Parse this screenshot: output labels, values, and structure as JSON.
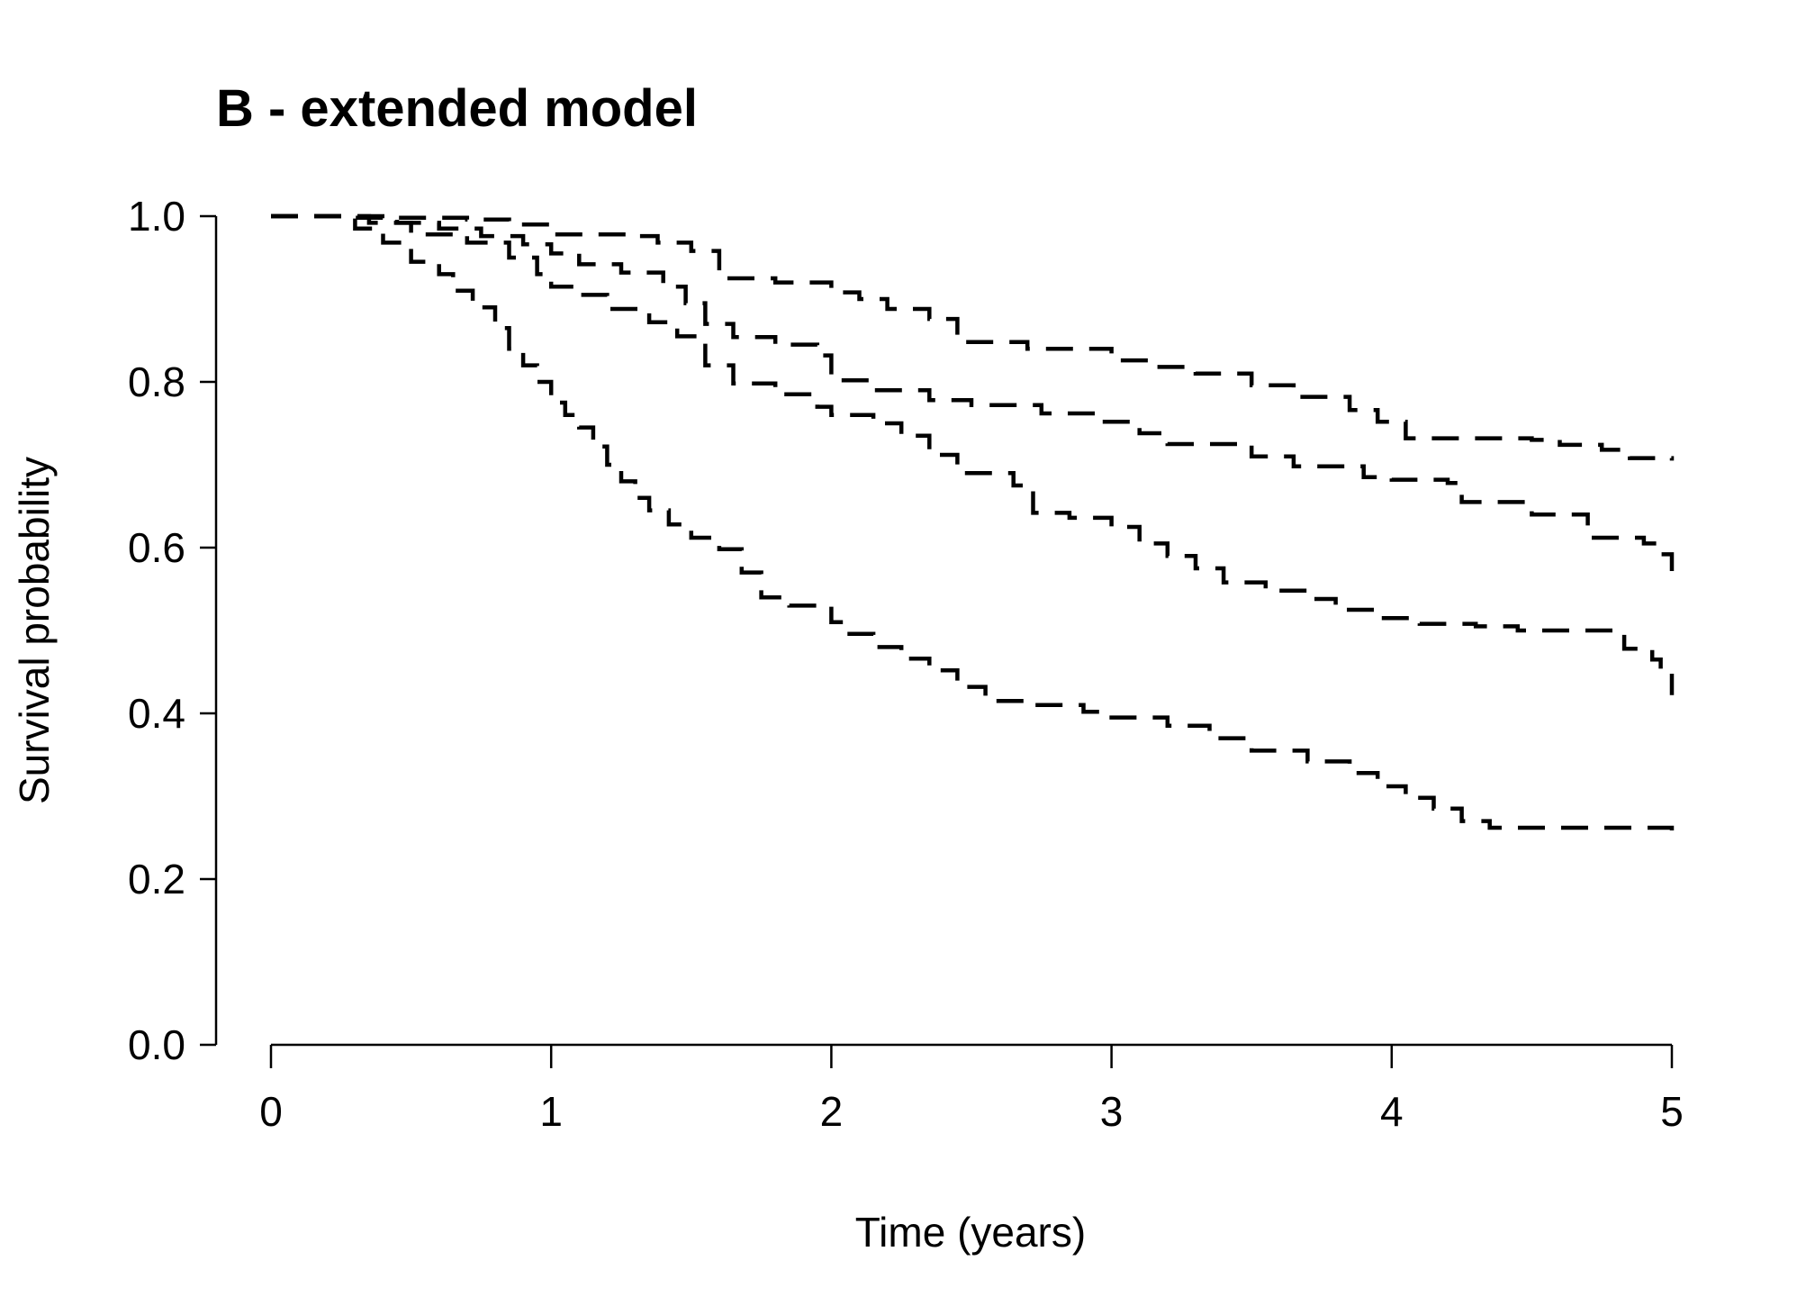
{
  "chart_data": {
    "type": "line",
    "step": true,
    "title": "B - extended model",
    "xlabel": "Time (years)",
    "ylabel": "Survival probability",
    "xlim": [
      0,
      5
    ],
    "ylim": [
      0,
      1
    ],
    "x_ticks": [
      {
        "value": 0,
        "label": "0"
      },
      {
        "value": 1,
        "label": "1"
      },
      {
        "value": 2,
        "label": "2"
      },
      {
        "value": 3,
        "label": "3"
      },
      {
        "value": 4,
        "label": "4"
      },
      {
        "value": 5,
        "label": "5"
      }
    ],
    "y_ticks": [
      {
        "value": 0.0,
        "label": "0.0"
      },
      {
        "value": 0.2,
        "label": "0.2"
      },
      {
        "value": 0.4,
        "label": "0.4"
      },
      {
        "value": 0.6,
        "label": "0.6"
      },
      {
        "value": 0.8,
        "label": "0.8"
      },
      {
        "value": 1.0,
        "label": "1.0"
      }
    ],
    "grid": false,
    "line_style": "dashed",
    "color": "#000000",
    "series": [
      {
        "name": "curve-1",
        "points": [
          [
            0,
            1.0
          ],
          [
            0.3,
            1.0
          ],
          [
            0.45,
            0.998
          ],
          [
            0.7,
            0.996
          ],
          [
            0.85,
            0.99
          ],
          [
            1.0,
            0.978
          ],
          [
            1.3,
            0.976
          ],
          [
            1.38,
            0.968
          ],
          [
            1.5,
            0.958
          ],
          [
            1.6,
            0.925
          ],
          [
            1.8,
            0.92
          ],
          [
            2.0,
            0.908
          ],
          [
            2.1,
            0.9
          ],
          [
            2.2,
            0.888
          ],
          [
            2.35,
            0.876
          ],
          [
            2.45,
            0.848
          ],
          [
            2.7,
            0.84
          ],
          [
            3.0,
            0.826
          ],
          [
            3.15,
            0.818
          ],
          [
            3.3,
            0.81
          ],
          [
            3.5,
            0.796
          ],
          [
            3.65,
            0.782
          ],
          [
            3.85,
            0.766
          ],
          [
            3.95,
            0.752
          ],
          [
            4.05,
            0.732
          ],
          [
            4.5,
            0.73
          ],
          [
            4.6,
            0.724
          ],
          [
            4.75,
            0.718
          ],
          [
            4.85,
            0.708
          ],
          [
            5.0,
            0.705
          ]
        ]
      },
      {
        "name": "curve-2",
        "points": [
          [
            0,
            1.0
          ],
          [
            0.3,
            0.998
          ],
          [
            0.45,
            0.992
          ],
          [
            0.6,
            0.985
          ],
          [
            0.75,
            0.976
          ],
          [
            0.9,
            0.966
          ],
          [
            1.0,
            0.955
          ],
          [
            1.1,
            0.942
          ],
          [
            1.25,
            0.932
          ],
          [
            1.4,
            0.915
          ],
          [
            1.48,
            0.895
          ],
          [
            1.55,
            0.87
          ],
          [
            1.65,
            0.854
          ],
          [
            1.8,
            0.845
          ],
          [
            1.95,
            0.832
          ],
          [
            2.0,
            0.802
          ],
          [
            2.15,
            0.79
          ],
          [
            2.35,
            0.778
          ],
          [
            2.5,
            0.772
          ],
          [
            2.75,
            0.762
          ],
          [
            2.95,
            0.752
          ],
          [
            3.1,
            0.738
          ],
          [
            3.2,
            0.725
          ],
          [
            3.5,
            0.71
          ],
          [
            3.65,
            0.698
          ],
          [
            3.9,
            0.685
          ],
          [
            4.0,
            0.682
          ],
          [
            4.2,
            0.678
          ],
          [
            4.25,
            0.655
          ],
          [
            4.5,
            0.64
          ],
          [
            4.7,
            0.612
          ],
          [
            4.9,
            0.605
          ],
          [
            4.95,
            0.592
          ],
          [
            5.0,
            0.565
          ]
        ]
      },
      {
        "name": "curve-3",
        "points": [
          [
            0,
            1.0
          ],
          [
            0.35,
            0.992
          ],
          [
            0.5,
            0.978
          ],
          [
            0.7,
            0.968
          ],
          [
            0.85,
            0.95
          ],
          [
            0.95,
            0.93
          ],
          [
            1.0,
            0.915
          ],
          [
            1.1,
            0.905
          ],
          [
            1.2,
            0.888
          ],
          [
            1.35,
            0.872
          ],
          [
            1.45,
            0.855
          ],
          [
            1.55,
            0.82
          ],
          [
            1.65,
            0.798
          ],
          [
            1.8,
            0.785
          ],
          [
            1.95,
            0.77
          ],
          [
            2.0,
            0.76
          ],
          [
            2.15,
            0.75
          ],
          [
            2.25,
            0.735
          ],
          [
            2.35,
            0.712
          ],
          [
            2.45,
            0.69
          ],
          [
            2.65,
            0.675
          ],
          [
            2.72,
            0.642
          ],
          [
            2.85,
            0.636
          ],
          [
            3.0,
            0.625
          ],
          [
            3.1,
            0.605
          ],
          [
            3.2,
            0.59
          ],
          [
            3.3,
            0.575
          ],
          [
            3.4,
            0.558
          ],
          [
            3.55,
            0.548
          ],
          [
            3.7,
            0.538
          ],
          [
            3.8,
            0.525
          ],
          [
            3.95,
            0.515
          ],
          [
            4.1,
            0.508
          ],
          [
            4.3,
            0.505
          ],
          [
            4.45,
            0.5
          ],
          [
            4.8,
            0.495
          ],
          [
            4.83,
            0.478
          ],
          [
            4.93,
            0.465
          ],
          [
            4.96,
            0.45
          ],
          [
            5.0,
            0.422
          ]
        ]
      },
      {
        "name": "curve-4",
        "points": [
          [
            0,
            1.0
          ],
          [
            0.3,
            0.985
          ],
          [
            0.4,
            0.968
          ],
          [
            0.5,
            0.945
          ],
          [
            0.6,
            0.93
          ],
          [
            0.65,
            0.91
          ],
          [
            0.72,
            0.89
          ],
          [
            0.8,
            0.865
          ],
          [
            0.85,
            0.84
          ],
          [
            0.9,
            0.82
          ],
          [
            0.95,
            0.8
          ],
          [
            1.0,
            0.775
          ],
          [
            1.05,
            0.76
          ],
          [
            1.1,
            0.745
          ],
          [
            1.15,
            0.722
          ],
          [
            1.2,
            0.7
          ],
          [
            1.25,
            0.68
          ],
          [
            1.3,
            0.66
          ],
          [
            1.35,
            0.645
          ],
          [
            1.42,
            0.628
          ],
          [
            1.5,
            0.612
          ],
          [
            1.6,
            0.598
          ],
          [
            1.68,
            0.57
          ],
          [
            1.75,
            0.54
          ],
          [
            1.85,
            0.53
          ],
          [
            2.0,
            0.51
          ],
          [
            2.05,
            0.496
          ],
          [
            2.15,
            0.48
          ],
          [
            2.25,
            0.466
          ],
          [
            2.35,
            0.452
          ],
          [
            2.45,
            0.432
          ],
          [
            2.55,
            0.415
          ],
          [
            2.7,
            0.41
          ],
          [
            2.9,
            0.402
          ],
          [
            3.0,
            0.395
          ],
          [
            3.2,
            0.385
          ],
          [
            3.35,
            0.37
          ],
          [
            3.5,
            0.355
          ],
          [
            3.7,
            0.342
          ],
          [
            3.85,
            0.328
          ],
          [
            3.95,
            0.312
          ],
          [
            4.05,
            0.298
          ],
          [
            4.15,
            0.285
          ],
          [
            4.25,
            0.27
          ],
          [
            4.35,
            0.262
          ],
          [
            5.0,
            0.258
          ]
        ]
      }
    ]
  }
}
